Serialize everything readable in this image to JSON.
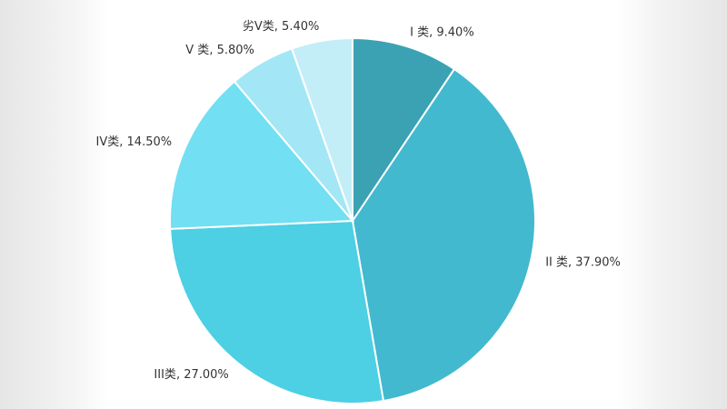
{
  "chart_data": {
    "type": "pie",
    "categories": [
      "I 类",
      "II 类",
      "III类",
      "IV类",
      "V 类",
      "劣V类"
    ],
    "values": [
      9.4,
      37.9,
      27.0,
      14.5,
      5.8,
      5.4
    ],
    "value_labels": [
      "9.40%",
      "37.90%",
      "27.00%",
      "14.50%",
      "5.80%",
      "5.40%"
    ],
    "label_separator": ", ",
    "colors": [
      "#3aa2b3",
      "#42b9cf",
      "#4dcfe4",
      "#72dff2",
      "#a3e7f6",
      "#c4eef7"
    ]
  }
}
